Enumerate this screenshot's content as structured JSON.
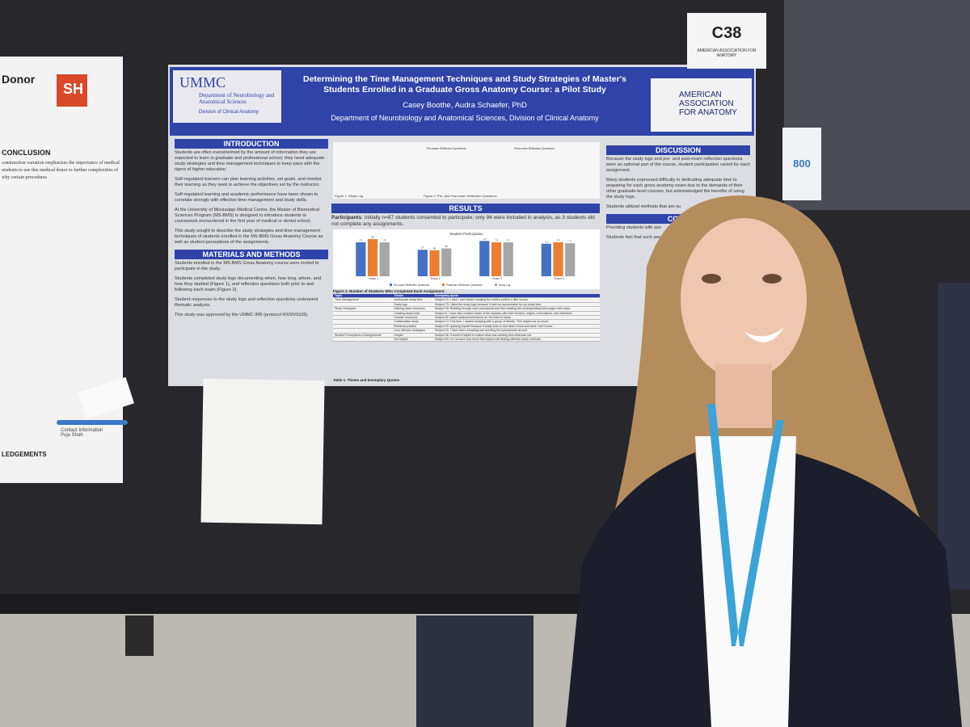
{
  "sign": {
    "code": "C38",
    "org": "AMERICAN ASSOCIATION FOR ANATOMY"
  },
  "side_tag": "800",
  "left_poster": {
    "title": "Donor",
    "logo": "SH",
    "conclusion_heading": "CONCLUSION",
    "conclusion_text": "construction variation emphasizes the importance of medical students to use this medical donor to further complexities of why certain procedures",
    "acknowledgements_heading": "LEDGEMENTS",
    "contact": "Contact Information Puja Shah"
  },
  "poster": {
    "logo": "UMMC",
    "department_logo": "Department of Neurobiology and Anatomical Sciences",
    "division_logo": "Division of Clinical Anatomy",
    "title": "Determining the Time Management Techniques and Study Strategies of Master's Students Enrolled in a Graduate Gross Anatomy Course: a Pilot Study",
    "authors": "Casey Boothe, Audra Schaefer, PhD",
    "affiliation": "Department of Neurobiology and Anatomical Sciences, Division of Clinical Anatomy",
    "aaa_logo": "AMERICAN ASSOCIATION FOR ANATOMY",
    "introduction": {
      "heading": "INTRODUCTION",
      "paragraphs": [
        "Students are often overwhelmed by the amount of information they are expected to learn in graduate and professional school; they need adequate study strategies and time management techniques to keep pace with the rigors of higher education.",
        "Self-regulated learners can plan learning activities, set goals, and monitor their learning as they seek to achieve the objectives set by the instructor.",
        "Self-regulated learning and academic performance have been shown to correlate strongly with effective time management and study skills.",
        "At the University of Mississippi Medical Center, the Master of Biomedical Sciences Program (MS-BMS) is designed to introduce students to coursework encountered in the first year of medical or dental school.",
        "This study sought to describe the study strategies and time management techniques of students enrolled in the MS-BMS Gross Anatomy Course as well as student perceptions of the assignments."
      ]
    },
    "methods": {
      "heading": "MATERIALS AND METHODS",
      "paragraphs": [
        "Students enrolled in the MS-BMS Gross Anatomy course were invited to participate in the study.",
        "Students completed study logs documenting when, how long, where, and how they studied (Figure 1), and reflection questions both prior to and following each exam (Figure 2).",
        "Student responses to the study logs and reflection questions underwent thematic analysis.",
        "This study was approved by the UMMC IRB (protocol K020V0105)"
      ]
    },
    "figures": {
      "figure1": "Figure 1. Study Log",
      "figure2": "Figure 2. Pre- and Post-exam Reflection Questions",
      "pre_heading": "Pre-exam Reflection Questions",
      "post_heading": "Post-exam Reflection Questions"
    },
    "results": {
      "heading": "RESULTS",
      "participants_label": "Participants",
      "participants_text": ": Initially n=87 students consented to participate; only 84 were included in analysis, as 3 students did not complete any assignments.",
      "chart": {
        "title": "Student Participation",
        "categories": [
          "Exam 1",
          "Exam 2",
          "Exam 3",
          "Exam 4"
        ],
        "series": [
          {
            "name": "Pre-exam Reflection Questions",
            "color": "#4472c4",
            "values": [
              73,
              57,
              76,
              70
            ]
          },
          {
            "name": "Postexam Reflection Questions",
            "color": "#ed7d31",
            "values": [
              80,
              56,
              73,
              73
            ]
          },
          {
            "name": "Study Log",
            "color": "#a5a5a5",
            "values": [
              73,
              60,
              73,
              71
            ]
          }
        ],
        "caption": "Figure 3. Number of Students Who Completed Each Assignment."
      },
      "table": {
        "header": [
          "Topic",
          "Theme",
          "Exemplary quote"
        ],
        "rows": [
          [
            "Time Management",
            "Inadequate study time",
            "Subject 19: I wish I had started studying the written portion a little sooner"
          ],
          [
            null,
            "Study logs",
            "Subject 73: I liked the study logs because it held me accountable for my study time."
          ],
          [
            "Study Strategies",
            "Utilizing class resources",
            "Subject 35: Reading through each powerpoint and then reading the corresponding book pages with notes."
          ],
          [
            null,
            "Creating study tools",
            "Subject 6: I have also created charts of the muscles with their function, origins, innervations, and insertions"
          ],
          [
            null,
            "Outside resources",
            "Subject 50: watch anatomical lectures on YouTube to study"
          ],
          [
            null,
            "Collaborative study",
            "Subject 14: This time, I started studying with a group of friends. This helped me so much."
          ],
          [
            null,
            "Retrieval practice",
            "Subject 29: quizzing myself because it really tests to see what I know and what I don't know"
          ],
          [
            null,
            "Less effective strategies",
            "Subject 33: I have been rereading and rewriting the powerpoints as well."
          ],
          [
            "Student Perceptions of Assignments",
            "Helpful",
            "Subject 48: It found it helpful to realize what was working and what was not."
          ],
          [
            null,
            "Not helpful",
            "Subject 84: I'm not sure how much this helped with finding effective study methods"
          ]
        ],
        "caption": "Table 1. Theme and Exemplary Quotes"
      }
    },
    "discussion": {
      "heading": "DISCUSSION",
      "paragraphs": [
        "Because the study logs and pre- and post-exam reflection questions were an optional part of the course, student participation varied for each assignment.",
        "Many students expressed difficulty in dedicating adequate time to preparing for each gross anatomy exam due to the demands of their other graduate-level courses, but acknowledged the benefits of using the study logs.",
        "Students utilized methods that are su"
      ]
    },
    "conclusion": {
      "heading": "CONC",
      "paragraphs": [
        "Providing students with ass",
        "Students feel that such ass"
      ]
    }
  }
}
